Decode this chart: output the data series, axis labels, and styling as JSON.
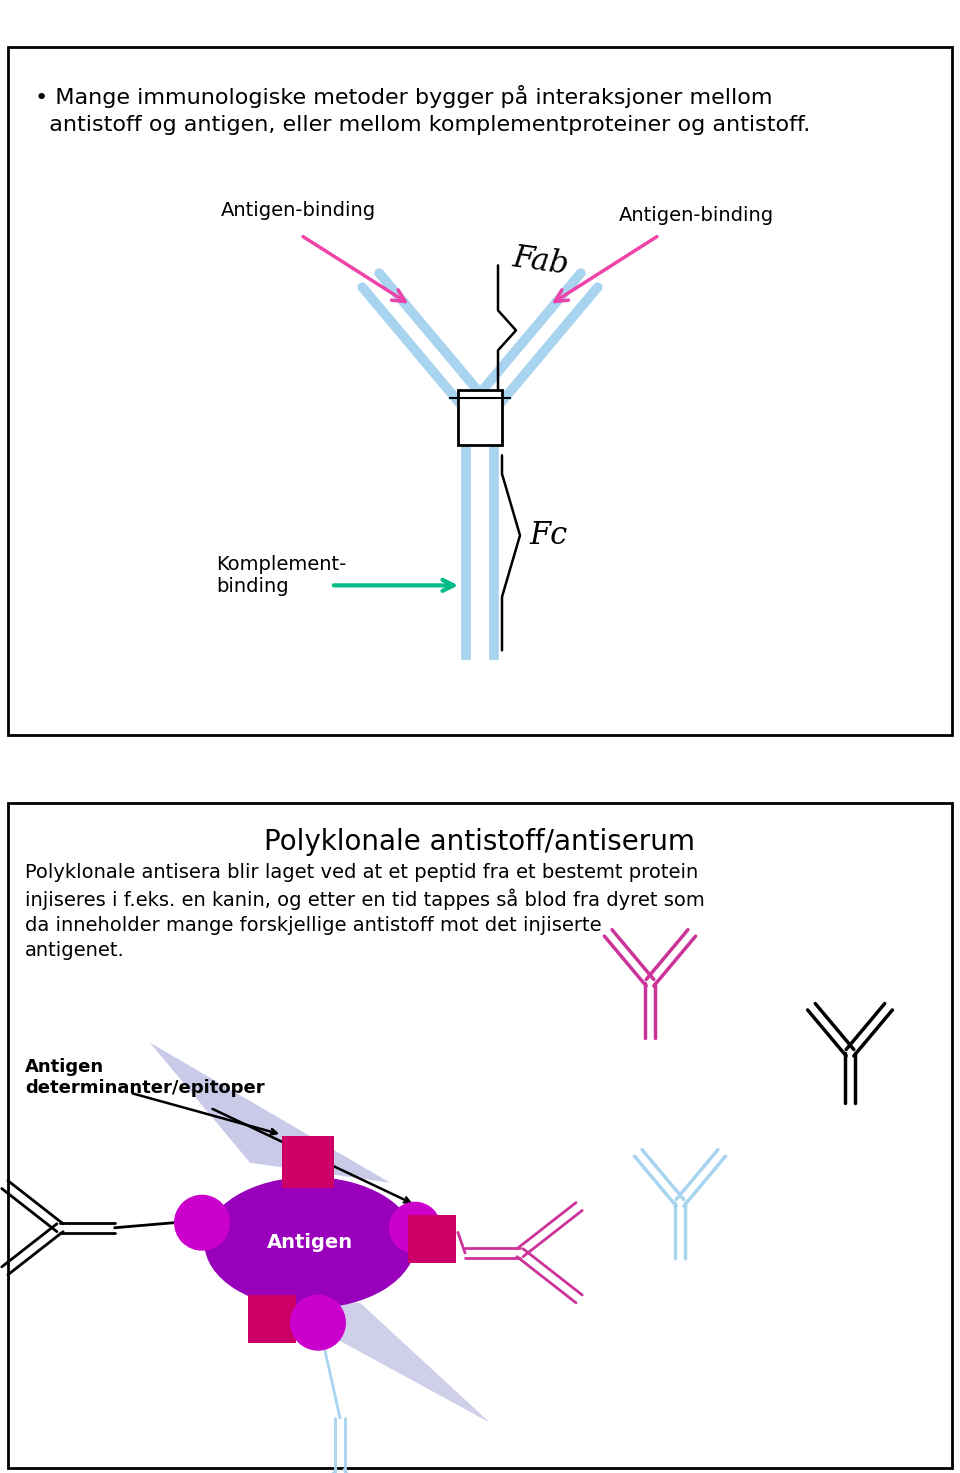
{
  "bg_color": "#ffffff",
  "panel1_bullet": "• Mange immunologiske metoder bygger på interaksjoner mellom\n  antistoff og antigen, eller mellom komplementproteiner og antistoff.",
  "label_antigen_binding_left": "Antigen-binding",
  "label_antigen_binding_right": "Antigen-binding",
  "label_fab": "Fab",
  "label_fc": "Fc",
  "label_komplement": "Komplement-\nbinding",
  "panel2_title": "Polyklonale antistoff/antiserum",
  "panel2_body": "Polyklonale antisera blir laget ved at et peptid fra et bestemt protein\ninjiseres i f.eks. en kanin, og etter en tid tappes så blod fra dyret som\nda inneholder mange forskjellige antistoff mot det injiserte\nantigenet.",
  "label_antigen_det": "Antigen\ndeterminanter/epitoper",
  "label_antigen": "Antigen",
  "ab_blue": "#a8d4f0",
  "ab_pink": "#cc3399",
  "ab_blue_light": "#a8d4f0",
  "arrow_pink": "#ee44aa",
  "arrow_green": "#00bb88",
  "magenta": "#cc00cc",
  "dark_magenta": "#880088",
  "purple_antigen": "#9900bb",
  "shadow_blue": "#8888cc"
}
